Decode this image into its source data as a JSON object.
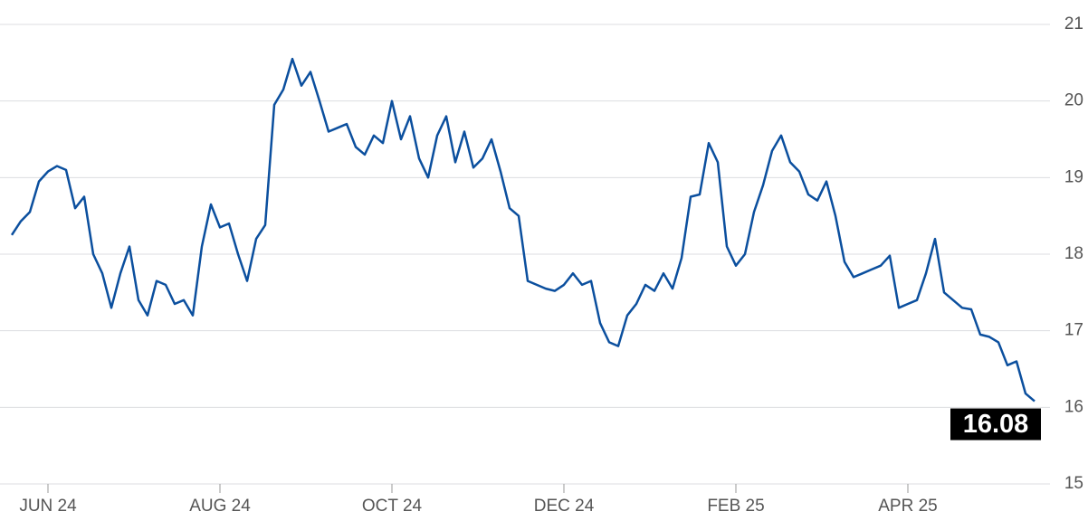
{
  "chart_data": {
    "type": "line",
    "categories": [
      null,
      null,
      null,
      null,
      "JUN 24",
      null,
      null,
      null,
      null,
      null,
      null,
      null,
      null,
      null,
      null,
      null,
      null,
      null,
      null,
      null,
      null,
      null,
      null,
      "AUG 24",
      null,
      null,
      null,
      null,
      null,
      null,
      null,
      null,
      null,
      null,
      null,
      null,
      null,
      null,
      null,
      null,
      null,
      null,
      "OCT 24",
      null,
      null,
      null,
      null,
      null,
      null,
      null,
      null,
      null,
      null,
      null,
      null,
      null,
      null,
      null,
      null,
      null,
      null,
      "DEC 24",
      null,
      null,
      null,
      null,
      null,
      null,
      null,
      null,
      null,
      null,
      null,
      null,
      null,
      null,
      null,
      null,
      null,
      null,
      "FEB 25",
      null,
      null,
      null,
      null,
      null,
      null,
      null,
      null,
      null,
      null,
      null,
      null,
      null,
      null,
      null,
      null,
      null,
      null,
      "APR 25",
      null,
      null,
      null,
      null,
      null,
      null,
      null,
      null,
      null,
      null,
      null,
      null,
      null,
      null
    ],
    "series": [
      {
        "color": "#0b4f9e",
        "values": [
          18.25,
          18.43,
          18.55,
          18.95,
          19.08,
          19.15,
          19.1,
          18.6,
          18.75,
          18.0,
          17.75,
          17.3,
          17.75,
          18.1,
          17.4,
          17.2,
          17.65,
          17.6,
          17.35,
          17.4,
          17.2,
          18.1,
          18.65,
          18.35,
          18.4,
          18.0,
          17.65,
          18.2,
          18.38,
          19.95,
          20.15,
          20.55,
          20.2,
          20.38,
          20.0,
          19.6,
          19.65,
          19.7,
          19.4,
          19.3,
          19.55,
          19.45,
          20.0,
          19.5,
          19.8,
          19.25,
          19.0,
          19.55,
          19.8,
          19.2,
          19.6,
          19.13,
          19.25,
          19.5,
          19.08,
          18.6,
          18.5,
          17.65,
          17.6,
          17.55,
          17.52,
          17.6,
          17.75,
          17.6,
          17.65,
          17.1,
          16.85,
          16.8,
          17.2,
          17.35,
          17.6,
          17.52,
          17.75,
          17.55,
          17.95,
          18.75,
          18.78,
          19.45,
          19.2,
          18.1,
          17.85,
          18.0,
          18.55,
          18.9,
          19.35,
          19.55,
          19.2,
          19.08,
          18.78,
          18.7,
          18.95,
          18.5,
          17.9,
          17.7,
          17.75,
          17.8,
          17.85,
          17.98,
          17.3,
          17.35,
          17.4,
          17.75,
          18.2,
          17.5,
          17.4,
          17.3,
          17.28,
          16.95,
          16.92,
          16.85,
          16.55,
          16.6,
          16.18,
          16.08
        ]
      }
    ],
    "ylim": [
      15,
      21
    ],
    "yticks": [
      15,
      16,
      17,
      18,
      19,
      20,
      21
    ],
    "grid": true
  }
}
